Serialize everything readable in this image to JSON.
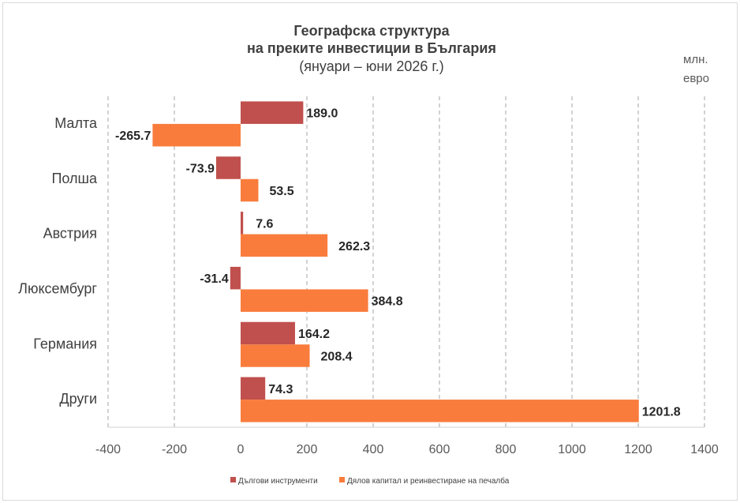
{
  "chart_data": {
    "type": "bar",
    "orientation": "horizontal",
    "title_lines": [
      "Географска структура",
      "на преките инвестиции в България",
      "(януари – юни 2026 г.)"
    ],
    "unit_label_lines": [
      "млн.",
      "евро"
    ],
    "categories": [
      "Малта",
      "Полша",
      "Австрия",
      "Люксембург",
      "Германия",
      "Други"
    ],
    "series": [
      {
        "name": "Дългови инструменти",
        "color": "#c0504d",
        "values": [
          189.0,
          -73.9,
          7.6,
          -31.4,
          164.2,
          74.3
        ]
      },
      {
        "name": "Дялов капитал и реинвестиране на печалба",
        "color": "#f97c3c",
        "values": [
          -265.7,
          53.5,
          262.3,
          384.8,
          208.4,
          1201.8
        ]
      }
    ],
    "xlim": [
      -400,
      1400
    ],
    "xticks": [
      -400,
      -200,
      0,
      200,
      400,
      600,
      800,
      1000,
      1200,
      1400
    ],
    "grid": "vertical dashed",
    "legend_position": "bottom",
    "value_labels": true
  }
}
